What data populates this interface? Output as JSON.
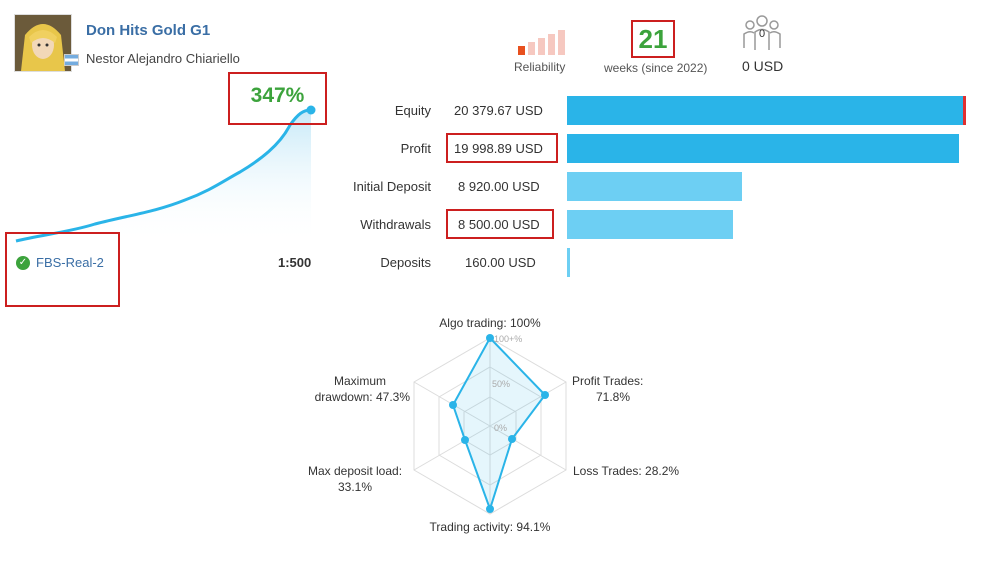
{
  "header": {
    "signal_title": "Don Hits Gold G1",
    "author": "Nestor Alejandro Chiariello",
    "reliability_label": "Reliability",
    "weeks_value": "21",
    "weeks_label": "weeks (since 2022)",
    "subscribers_count": "0",
    "subscribers_value": "0 USD"
  },
  "growth": {
    "value": "347%",
    "server": "FBS-Real-2",
    "leverage": "1:500"
  },
  "stats": [
    {
      "label": "Equity",
      "value": "20 379.67 USD",
      "amount": 20379.67
    },
    {
      "label": "Profit",
      "value": "19 998.89 USD",
      "amount": 19998.89
    },
    {
      "label": "Initial Deposit",
      "value": "8 920.00 USD",
      "amount": 8920.0
    },
    {
      "label": "Withdrawals",
      "value": "8 500.00 USD",
      "amount": 8500.0
    },
    {
      "label": "Deposits",
      "value": "160.00 USD",
      "amount": 160.0
    }
  ],
  "radar": {
    "algo_trading": "Algo trading: 100%",
    "profit_trades_line1": "Profit Trades:",
    "profit_trades_line2": "71.8%",
    "loss_trades": "Loss Trades: 28.2%",
    "trading_activity": "Trading activity: 94.1%",
    "max_deposit_load_line1": "Max deposit load:",
    "max_deposit_load_line2": "33.1%",
    "max_drawdown_line1": "Maximum",
    "max_drawdown_line2": "drawdown: 47.3%",
    "tick_100": "100+%",
    "tick_50": "50%",
    "tick_0": "0%"
  },
  "colors": {
    "accent": "#2ab4e8",
    "accent_light": "#6dcff3",
    "growth_green": "#3ca33c",
    "highlight_red": "#cc1f1f",
    "title_blue": "#3a6ea5"
  }
}
